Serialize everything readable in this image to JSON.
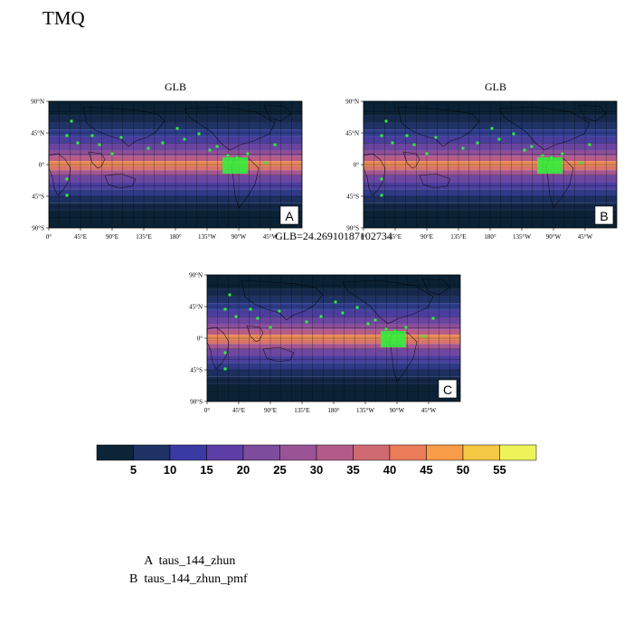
{
  "title": "TMQ",
  "panels": [
    {
      "id": "A",
      "title": "GLB"
    },
    {
      "id": "B",
      "title": "GLB"
    },
    {
      "id": "C",
      "title": "GLB=24.26910187102734"
    }
  ],
  "x_ticks": [
    "0°",
    "45°E",
    "90°E",
    "135°E",
    "180°",
    "135°W",
    "90°W",
    "45°W"
  ],
  "y_ticks": [
    "90°N",
    "45°N",
    "0°",
    "45°S",
    "90°S"
  ],
  "colorbar": {
    "labels": [
      "5",
      "10",
      "15",
      "20",
      "25",
      "30",
      "35",
      "40",
      "45",
      "50",
      "55"
    ],
    "colors": [
      "#0c2436",
      "#1e3266",
      "#3a3aa4",
      "#5c3ea6",
      "#7e4c9c",
      "#9a5496",
      "#b35a8a",
      "#d06a72",
      "#ea7c5a",
      "#f89c48",
      "#f5c844",
      "#eef35a"
    ]
  },
  "legend": [
    {
      "id": "A",
      "text": "taus_144_zhun"
    },
    {
      "id": "B",
      "text": "taus_144_zhun_pmf"
    }
  ]
}
